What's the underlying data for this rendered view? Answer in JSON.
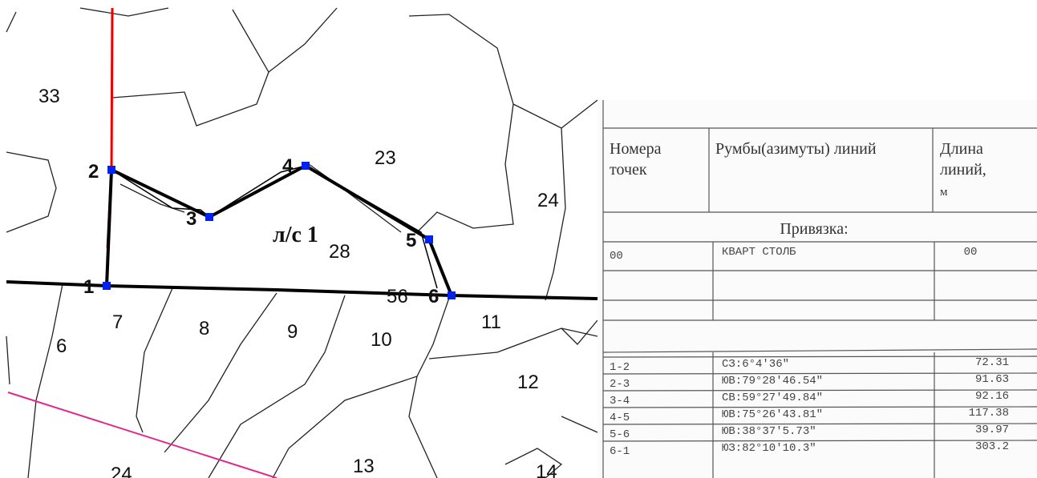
{
  "map": {
    "parcels": [
      "33",
      "23",
      "24",
      "28",
      "7",
      "8",
      "9",
      "10",
      "11",
      "12",
      "6",
      "13",
      "14",
      "24",
      "56"
    ],
    "plot_label": "л/с 1",
    "points": [
      "1",
      "2",
      "3",
      "4",
      "5",
      "6"
    ]
  },
  "table": {
    "header": [
      "Номера точек",
      "Румбы(азимуты) линий",
      "Длина линий, м"
    ],
    "section": "Привязка:",
    "anchor_row": [
      "00",
      "КВАРТ СТОЛБ",
      "00"
    ],
    "rows": [
      [
        "1-2",
        "СЗ:6°4'36\"",
        "72.31"
      ],
      [
        "2-3",
        "ЮВ:79°28'46.54\"",
        "91.63"
      ],
      [
        "3-4",
        "СВ:59°27'49.84\"",
        "92.16"
      ],
      [
        "4-5",
        "ЮВ:75°26'43.81\"",
        "117.38"
      ],
      [
        "5-6",
        "ЮВ:38°37'5.73\"",
        "39.97"
      ],
      [
        "6-1",
        "ЮЗ:82°10'10.3\"",
        "303.2"
      ]
    ]
  }
}
